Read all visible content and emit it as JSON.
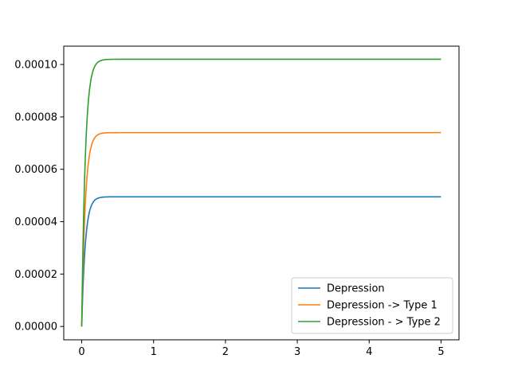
{
  "chart_data": {
    "type": "line",
    "title": "",
    "xlabel": "",
    "ylabel": "",
    "xlim": [
      -0.25,
      5.25
    ],
    "ylim": [
      -5.1e-06,
      0.000107
    ],
    "x_ticks": [
      0,
      1,
      2,
      3,
      4,
      5
    ],
    "x_tick_labels": [
      "0",
      "1",
      "2",
      "3",
      "4",
      "5"
    ],
    "y_ticks": [
      0,
      2e-05,
      4e-05,
      6e-05,
      8e-05,
      0.0001
    ],
    "y_tick_labels": [
      "0.00000",
      "0.00002",
      "0.00004",
      "0.00006",
      "0.00008",
      "0.00010"
    ],
    "grid": false,
    "legend_position": "lower-right",
    "x_range": [
      0,
      5
    ],
    "series": [
      {
        "name": "Depression",
        "color": "#1f77b4",
        "plateau": 4.95e-05,
        "rate": 20
      },
      {
        "name": "Depression -> Type 1",
        "color": "#ff7f0e",
        "plateau": 7.4e-05,
        "rate": 20
      },
      {
        "name": "Depression - > Type 2",
        "color": "#2ca02c",
        "plateau": 0.000102,
        "rate": 20
      }
    ]
  }
}
